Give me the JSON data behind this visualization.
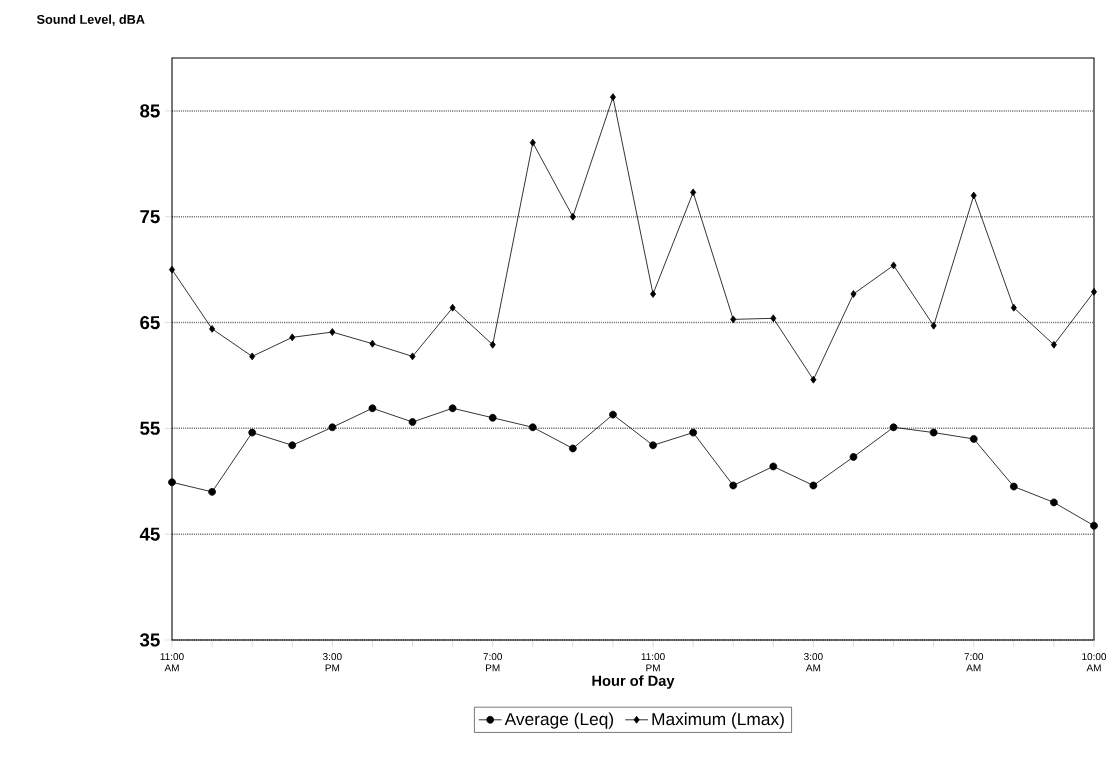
{
  "chart_data": {
    "type": "line",
    "ylabel": "Sound Level, dBA",
    "xlabel": "Hour of Day",
    "categories": [
      "11:00 AM",
      null,
      null,
      null,
      "3:00 PM",
      null,
      null,
      null,
      "7:00 PM",
      null,
      null,
      null,
      "11:00 PM",
      null,
      null,
      null,
      "3:00 AM",
      null,
      null,
      null,
      "7:00 AM",
      null,
      null,
      "10:00 AM"
    ],
    "series": [
      {
        "name": "Average (Leq)",
        "color": "#000000",
        "marker": "circle",
        "values": [
          49.9,
          49.0,
          54.6,
          53.4,
          55.1,
          56.9,
          55.6,
          56.9,
          56.0,
          55.1,
          53.1,
          56.3,
          53.4,
          54.6,
          49.6,
          51.4,
          49.6,
          52.3,
          55.1,
          54.6,
          54.0,
          49.5,
          48.0,
          45.8
        ]
      },
      {
        "name": "Maximum (Lmax)",
        "color": "#000000",
        "marker": "diamond",
        "values": [
          70.0,
          64.4,
          61.8,
          63.6,
          64.1,
          63.0,
          61.8,
          66.4,
          62.9,
          82.0,
          75.0,
          86.3,
          67.7,
          77.3,
          65.3,
          65.4,
          59.6,
          67.7,
          70.4,
          64.7,
          77.0,
          66.4,
          62.9,
          67.9
        ]
      }
    ],
    "ylim": [
      35,
      90
    ],
    "yticks": [
      35,
      45,
      55,
      65,
      75,
      85
    ],
    "grid": "y",
    "legend": "bottom",
    "line_style": "solid"
  }
}
